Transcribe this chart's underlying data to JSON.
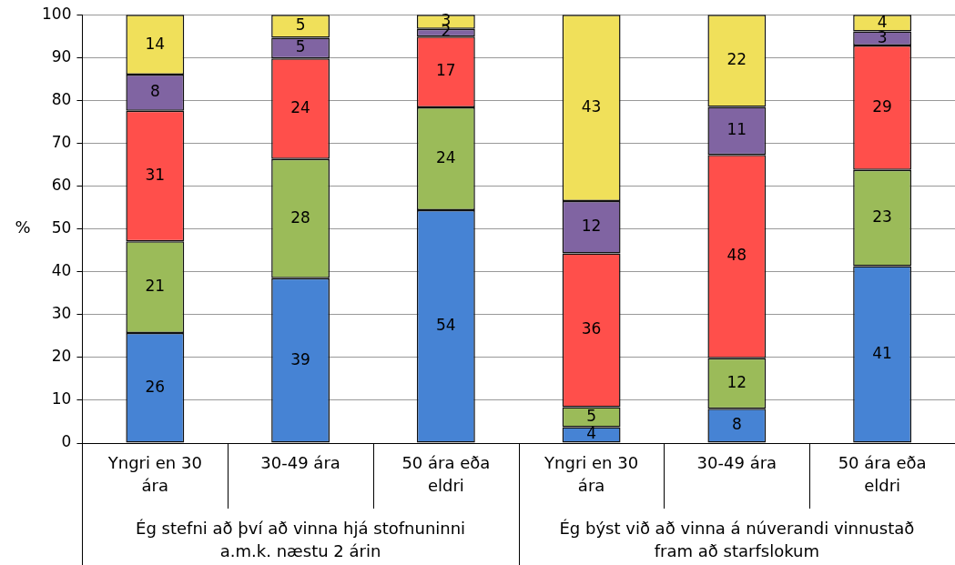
{
  "chart_data": {
    "type": "bar",
    "stacked": true,
    "grid": "y",
    "ylabel": "%",
    "categories": [
      "Yngri en 30 ára",
      "30-49 ára",
      "50 ára eða eldri",
      "Yngri en 30 ára",
      "30-49 ára",
      "50 ára eða eldri"
    ],
    "series": [
      {
        "color": "#4683d4",
        "values": [
          25.7,
          38.5,
          54.4,
          3.7,
          8.0,
          41.3
        ],
        "value_labels": [
          "26",
          "39",
          "54",
          "4",
          "8",
          "41"
        ]
      },
      {
        "color": "#9bbb59",
        "values": [
          21.4,
          27.8,
          24.0,
          4.7,
          11.8,
          22.5
        ],
        "value_labels": [
          "21",
          "28",
          "24",
          "5",
          "12",
          "23"
        ]
      },
      {
        "color": "#ff4f4b",
        "values": [
          30.5,
          23.5,
          16.5,
          35.9,
          47.5,
          29.0
        ],
        "value_labels": [
          "31",
          "24",
          "17",
          "36",
          "48",
          "29"
        ]
      },
      {
        "color": "#8064a2",
        "values": [
          8.4,
          4.8,
          1.8,
          12.2,
          11.2,
          3.3
        ],
        "value_labels": [
          "8",
          "5",
          "2",
          "12",
          "11",
          "3"
        ]
      },
      {
        "color": "#f0e05a",
        "values": [
          14.0,
          5.4,
          3.3,
          43.5,
          21.5,
          3.9
        ],
        "value_labels": [
          "14",
          "5",
          "3",
          "43",
          "22",
          "4"
        ]
      }
    ],
    "ylim": [
      0,
      100
    ],
    "yticks": [
      0,
      10,
      20,
      30,
      40,
      50,
      60,
      70,
      80,
      90,
      100
    ],
    "annotations": [
      "Ég stefni að því að vinna hjá stofnuninni a.m.k. næstu 2 árin",
      "Ég býst við að vinna á núverandi vinnustað fram að starfslokum"
    ]
  }
}
